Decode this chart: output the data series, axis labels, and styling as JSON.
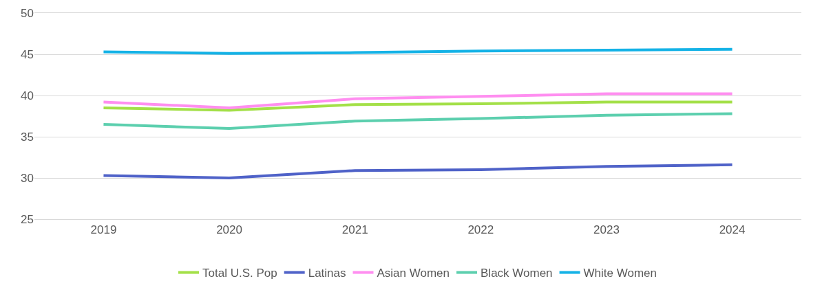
{
  "chart_data": {
    "type": "line",
    "categories": [
      "2019",
      "2020",
      "2021",
      "2022",
      "2023",
      "2024"
    ],
    "series": [
      {
        "name": "Total U.S. Pop",
        "color": "#a3e048",
        "values": [
          38.5,
          38.2,
          38.9,
          39.0,
          39.2,
          39.2
        ]
      },
      {
        "name": "Latinas",
        "color": "#4f62c8",
        "values": [
          30.3,
          30.0,
          30.9,
          31.0,
          31.4,
          31.6
        ]
      },
      {
        "name": "Asian Women",
        "color": "#ff8ef0",
        "values": [
          39.2,
          38.5,
          39.6,
          39.9,
          40.2,
          40.2
        ]
      },
      {
        "name": "Black Women",
        "color": "#5ccfae",
        "values": [
          36.5,
          36.0,
          36.9,
          37.2,
          37.6,
          37.8
        ]
      },
      {
        "name": "White Women",
        "color": "#14b2e6",
        "values": [
          45.3,
          45.1,
          45.2,
          45.4,
          45.5,
          45.6
        ]
      }
    ],
    "ylim": [
      25,
      50
    ],
    "yticks": [
      25,
      30,
      35,
      40,
      45,
      50
    ],
    "grid": "y",
    "legend": "bottom",
    "marker": "none",
    "line_style": "solid"
  }
}
